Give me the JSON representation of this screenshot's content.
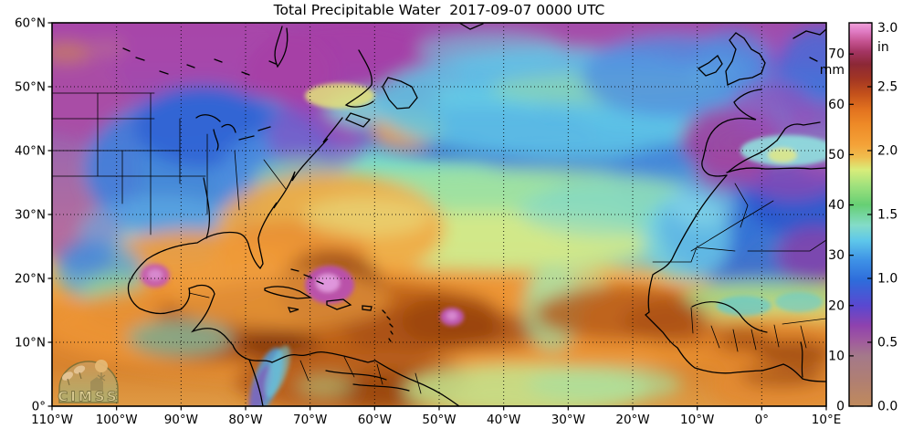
{
  "title": "Total Precipitable Water  2017-09-07 0000 UTC",
  "watermark": {
    "text": "CIMSS"
  },
  "axes": {
    "x_ticks": [
      "110°W",
      "100°W",
      "90°W",
      "80°W",
      "70°W",
      "60°W",
      "50°W",
      "40°W",
      "30°W",
      "20°W",
      "10°W",
      "0°",
      "10°E"
    ],
    "y_ticks": [
      "60°N",
      "50°N",
      "40°N",
      "30°N",
      "20°N",
      "10°N",
      "0°"
    ]
  },
  "colorbar": {
    "unit_primary": "mm",
    "unit_secondary": "in",
    "mm_ticks": [
      "70",
      "60",
      "50",
      "40",
      "30",
      "20",
      "10",
      "0"
    ],
    "in_ticks": [
      "3.0",
      "2.5",
      "2.0",
      "1.5",
      "1.0",
      "0.5",
      "0.0"
    ],
    "gradient": [
      [
        0,
        "#c08a5c"
      ],
      [
        0.066,
        "#b07f72"
      ],
      [
        0.131,
        "#a4798a"
      ],
      [
        0.171,
        "#a05a9e"
      ],
      [
        0.21,
        "#8f42ae"
      ],
      [
        0.262,
        "#5a48d0"
      ],
      [
        0.328,
        "#2e6cdb"
      ],
      [
        0.381,
        "#3e92e6"
      ],
      [
        0.433,
        "#5fc8ea"
      ],
      [
        0.472,
        "#84dcc8"
      ],
      [
        0.525,
        "#66cf74"
      ],
      [
        0.577,
        "#a2e27d"
      ],
      [
        0.617,
        "#d9ed7a"
      ],
      [
        0.65,
        "#f0bd4e"
      ],
      [
        0.682,
        "#f4a238"
      ],
      [
        0.735,
        "#ee8a27"
      ],
      [
        0.774,
        "#e2721f"
      ],
      [
        0.814,
        "#c4511b"
      ],
      [
        0.853,
        "#a33623"
      ],
      [
        0.892,
        "#8c2836"
      ],
      [
        0.925,
        "#a43563"
      ],
      [
        0.951,
        "#c45290"
      ],
      [
        0.978,
        "#e07cc4"
      ],
      [
        1,
        "#f0a2da"
      ]
    ]
  },
  "chart_data": {
    "type": "heatmap",
    "title": "Total Precipitable Water  2017-09-07 0000 UTC",
    "variable": "Total Precipitable Water",
    "timestamp": "2017-09-07 0000 UTC",
    "units": [
      "mm",
      "in"
    ],
    "colorbar_mm_ticks": [
      0,
      10,
      20,
      30,
      40,
      50,
      60,
      70
    ],
    "colorbar_in_ticks": [
      0.0,
      0.5,
      1.0,
      1.5,
      2.0,
      2.5,
      3.0
    ],
    "extent": {
      "west": "110°W",
      "east": "10°E",
      "south": "0°",
      "north": "60°N"
    },
    "grid": "10-degree dotted graticule",
    "legend_position": "right",
    "watermark": "CIMSS"
  },
  "map": {
    "base_gradient": [
      [
        0,
        "#a14caa"
      ],
      [
        0.09,
        "#9052c0"
      ],
      [
        0.17,
        "#5a77d6"
      ],
      [
        0.27,
        "#55b2e2"
      ],
      [
        0.37,
        "#7ddcc4"
      ],
      [
        0.46,
        "#a8e6a0"
      ],
      [
        0.55,
        "#d9ec8c"
      ],
      [
        0.63,
        "#f0c05c"
      ],
      [
        0.71,
        "#f0a03c"
      ],
      [
        0.8,
        "#e2862e"
      ],
      [
        0.9,
        "#d8842f"
      ],
      [
        1,
        "#df9a44"
      ]
    ],
    "blobs": [
      [
        110,
        55,
        200,
        80,
        "#a845a8",
        0.9
      ],
      [
        25,
        150,
        70,
        120,
        "#ab4da4",
        0.8
      ],
      [
        330,
        62,
        120,
        70,
        "#a63fa5",
        0.9
      ],
      [
        600,
        18,
        200,
        16,
        "#aa4da8",
        0.8
      ],
      [
        520,
        28,
        90,
        12,
        "#a04fa8",
        0.5
      ],
      [
        480,
        30,
        80,
        20,
        "#6fcfe0",
        0.6
      ],
      [
        15,
        32,
        28,
        12,
        "#cc8455",
        0.7
      ],
      [
        60,
        28,
        20,
        10,
        "#c07a8a",
        0.5
      ],
      [
        175,
        160,
        140,
        85,
        "#3f7fdc",
        0.9
      ],
      [
        165,
        113,
        75,
        45,
        "#2f62d4",
        0.85
      ],
      [
        250,
        175,
        70,
        60,
        "#4f8fe0",
        0.7
      ],
      [
        120,
        230,
        90,
        40,
        "#5fb0e8",
        0.6
      ],
      [
        290,
        125,
        55,
        40,
        "#8f49c0",
        0.6
      ],
      [
        315,
        80,
        38,
        14,
        "#e3e27a",
        0.85,
        0,
        1
      ],
      [
        420,
        95,
        120,
        26,
        "#7fe2d8",
        0.8
      ],
      [
        388,
        78,
        36,
        20,
        "#8f2f7f",
        0.8
      ],
      [
        470,
        122,
        130,
        30,
        "#2f55cc",
        0.85
      ],
      [
        585,
        140,
        130,
        28,
        "#3a66d4",
        0.75
      ],
      [
        390,
        117,
        40,
        20,
        "#f2a843",
        0.9
      ],
      [
        560,
        88,
        210,
        60,
        "#5fc8e8",
        0.85
      ],
      [
        610,
        72,
        130,
        18,
        "#9fdf9f",
        0.55
      ],
      [
        680,
        58,
        100,
        45,
        "#4f8fe0",
        0.8
      ],
      [
        840,
        60,
        45,
        55,
        "#3a6fd8",
        0.7
      ],
      [
        730,
        52,
        28,
        14,
        "#7fd8e8",
        0.5
      ],
      [
        660,
        210,
        130,
        60,
        "#4f9fe0",
        0.7
      ],
      [
        700,
        170,
        90,
        40,
        "#3f7fd8",
        0.6
      ],
      [
        490,
        215,
        270,
        55,
        "#9fe0a0",
        0.85
      ],
      [
        470,
        237,
        190,
        30,
        "#dcea84",
        0.8
      ],
      [
        620,
        205,
        110,
        30,
        "#7fd8d0",
        0.55
      ],
      [
        275,
        175,
        55,
        28,
        "#9fe0a0",
        0.6
      ],
      [
        305,
        225,
        125,
        60,
        "#f2a843",
        0.9
      ],
      [
        262,
        252,
        85,
        35,
        "#e88c30",
        0.8
      ],
      [
        345,
        212,
        70,
        22,
        "#e8e080",
        0.6
      ],
      [
        240,
        265,
        60,
        25,
        "#ef9a38",
        0.7
      ],
      [
        150,
        272,
        100,
        45,
        "#ef9a38",
        0.9
      ],
      [
        103,
        312,
        65,
        22,
        "#a84c10",
        0.7
      ],
      [
        113,
        277,
        16,
        13,
        "#c45ab4",
        0.9,
        0,
        1
      ],
      [
        113,
        276,
        8,
        6,
        "#d98ed3",
        0.9,
        0,
        1
      ],
      [
        52,
        272,
        48,
        32,
        "#55aadf",
        0.8
      ],
      [
        68,
        295,
        36,
        20,
        "#8fd88f",
        0.7
      ],
      [
        38,
        258,
        30,
        20,
        "#3f7fd8",
        0.6
      ],
      [
        380,
        332,
        390,
        62,
        "#ec9434",
        0.9
      ],
      [
        750,
        332,
        120,
        50,
        "#e89030",
        0.8
      ],
      [
        300,
        322,
        185,
        42,
        "#b35612",
        0.8
      ],
      [
        180,
        347,
        95,
        26,
        "#9a4410",
        0.75
      ],
      [
        405,
        337,
        85,
        26,
        "#a84c12",
        0.8
      ],
      [
        480,
        337,
        60,
        20,
        "#9a4410",
        0.7
      ],
      [
        250,
        352,
        42,
        16,
        "#7f3408",
        0.7
      ],
      [
        305,
        292,
        58,
        42,
        "#8a3a0c",
        0.8
      ],
      [
        304,
        287,
        27,
        21,
        "#b84fb0",
        0.95,
        0,
        1
      ],
      [
        302,
        285,
        13,
        10,
        "#e19ade",
        0.95,
        0,
        1
      ],
      [
        438,
        326,
        55,
        30,
        "#9a4410",
        0.75
      ],
      [
        438,
        322,
        13,
        10,
        "#c05ab8",
        0.95,
        0,
        1
      ],
      [
        438,
        321,
        6,
        5,
        "#d98ed3",
        0.9,
        0,
        1
      ],
      [
        548,
        312,
        32,
        48,
        "#9ed8a0",
        0.75
      ],
      [
        565,
        288,
        42,
        24,
        "#b8e8a8",
        0.55
      ],
      [
        625,
        318,
        95,
        30,
        "#b3581a",
        0.8
      ],
      [
        695,
        328,
        70,
        25,
        "#a84c12",
        0.7
      ],
      [
        140,
        345,
        58,
        20,
        "#7fc8b0",
        0.7
      ],
      [
        250,
        302,
        120,
        35,
        "#f0a040",
        0.7
      ],
      [
        235,
        392,
        14,
        38,
        "#4f9fe0",
        0.85,
        20,
        1
      ],
      [
        228,
        402,
        9,
        28,
        "#8a4fb8",
        0.6,
        20,
        1
      ],
      [
        247,
        382,
        10,
        30,
        "#6fd0e0",
        0.6,
        20,
        1
      ],
      [
        330,
        392,
        130,
        36,
        "#b3581a",
        0.85
      ],
      [
        375,
        402,
        65,
        22,
        "#93400e",
        0.75
      ],
      [
        300,
        398,
        32,
        12,
        "#a8d890",
        0.5
      ],
      [
        520,
        402,
        135,
        28,
        "#c4e68f",
        0.85
      ],
      [
        605,
        396,
        85,
        20,
        "#a8dfa0",
        0.7
      ],
      [
        795,
        400,
        75,
        28,
        "#e4892f",
        0.8
      ],
      [
        800,
        386,
        45,
        12,
        "#8a3a0c",
        0.65
      ],
      [
        780,
        225,
        115,
        68,
        "#2f6ad8",
        0.9
      ],
      [
        822,
        193,
        60,
        42,
        "#2a52cc",
        0.8
      ],
      [
        836,
        255,
        42,
        32,
        "#8a3fa8",
        0.8
      ],
      [
        812,
        168,
        52,
        26,
        "#9a46b0",
        0.7
      ],
      [
        845,
        128,
        42,
        42,
        "#a04fb0",
        0.7
      ],
      [
        695,
        235,
        48,
        48,
        "#6fcfe8",
        0.75
      ],
      [
        712,
        198,
        36,
        26,
        "#8fdfe8",
        0.55
      ],
      [
        780,
        300,
        88,
        18,
        "#9fdf8f",
        0.85
      ],
      [
        758,
        310,
        30,
        11,
        "#5fc8d0",
        0.7,
        0,
        1
      ],
      [
        818,
        306,
        26,
        11,
        "#66ccd4",
        0.6,
        0,
        1
      ],
      [
        790,
        320,
        82,
        12,
        "#e3e27a",
        0.7
      ],
      [
        790,
        352,
        82,
        30,
        "#e0852c",
        0.85
      ],
      [
        812,
        362,
        42,
        15,
        "#93400e",
        0.75
      ],
      [
        758,
        347,
        30,
        13,
        "#9a4410",
        0.65
      ],
      [
        745,
        128,
        56,
        36,
        "#a03f9f",
        0.9
      ],
      [
        788,
        95,
        46,
        30,
        "#984fb8",
        0.7
      ],
      [
        740,
        165,
        36,
        20,
        "#a8459f",
        0.7
      ],
      [
        806,
        140,
        52,
        17,
        "#8fe8e0",
        0.85,
        0,
        1
      ],
      [
        800,
        145,
        16,
        8,
        "#e8e87f",
        0.8,
        0,
        1
      ],
      [
        745,
        40,
        42,
        32,
        "#4f8fe0",
        0.7
      ]
    ],
    "coastlines": [
      "M252,4 C247,22 240,32 247,48 C254,38 260,26 257,6",
      "M336,30 C344,44 352,56 350,68 C342,78 330,84 322,90 C330,94 344,92 352,86",
      "M368,60 L382,64 L394,70 L400,82 L391,93 L378,94 L369,84 L362,70 Z",
      "M327,99 L348,106 L341,114 L322,106 Z",
      "M318,104 C306,120 300,126 297,131 L302,127 C288,143 272,158 263,173 L266,163 C258,184 247,196 243,203 L246,197 C234,214 228,226 226,236 C226,244 230,256 231,264 L228,269 C221,262 217,250 215,242 C212,234 208,231 202,230 C188,228 174,232 164,238 L159,241 C139,243 119,249 104,259 C94,268 87,278 84,286 C82,296 86,306 96,313 C107,318 119,320 129,317 L141,314 C149,307 152,299 150,291 L159,288 C169,286 176,290 178,297 L173,310 C168,322 160,331 154,338 C163,335 172,333 181,337 C189,341 193,348 198,353 C201,361 207,366 216,369 C226,372 233,368 241,372 C251,368 259,362 269,364 C281,366 287,359 299,361 C315,363 331,368 346,372 L354,370 C367,378 381,386 396,392 C411,398 426,406 436,413 L446,420",
      "M216,369 C221,382 226,396 229,410 L231,420",
      "M233,291 C246,287 259,289 271,294 L283,301 L269,302 C255,300 241,297 233,293 Z",
      "M301,305 L319,303 L327,309 L312,314 L301,309 Z",
      "M259,312 L270,314 L261,317 Z",
      "M340,310 L350,311 L349,315 L340,314 Z",
      "M362,315 l3,3 M367,322 l3,3 M370,330 l3,3 M371,338 l2,3 M369,346 l2,3",
      "M262,270 l8,2 M276,276 l8,3 M290,283 l7,3",
      "M158,104 C166,98 177,101 184,108 M186,114 C193,109 199,112 201,120 M177,117 C179,128 184,132 181,139 M205,128 L221,124 M226,118 L239,114",
      "M446,0 L458,7 L472,1",
      "M739,167 C726,182 714,197 705,212 C695,228 686,244 679,259 C673,269 663,272 658,276 C654,290 652,304 654,317 L650,320 C656,326 663,333 669,339 C675,347 679,352 685,356 C691,366 697,373 704,378 C719,383 735,385 749,383 C762,382 771,381 778,381 C790,378 798,375 801,374 C811,378 817,385 822,390 C831,393 841,393 848,393",
      "M739,164 C753,159 767,158 781,160 C801,160 816,158 831,160 L848,159",
      "M713,149 C710,156 713,162 719,166 C726,169 733,168 739,167 M713,149 L717,132 C721,119 729,111 740,107 C753,103 763,105 771,106 C761,102 751,95 747,87 C757,77 767,74 777,73 M741,163 C755,151 769,146 776,142 C785,137 791,131 794,129 C798,123 801,119 803,116 C809,111 816,110 823,112 L841,109",
      "M740,68 L753,62 L767,60 L777,55 L781,44 L775,34 L766,29 L758,17 L749,11 L742,19 L749,29 L745,42 L738,53 Z",
      "M708,50 L719,44 L729,36 L734,45 L727,54 L716,58 Z",
      "M812,17 L826,9 L841,13 L848,7 M830,38 l8,4",
      "M92,38 l9,3 M118,53 l9,3 M148,46 l8,3 M178,40 l8,3 M208,54 l8,3 M78,28 l7,3 M238,42 l7,3"
    ],
    "borders": [
      "M0,77 L112,77",
      "M0,105 L112,105",
      "M0,140 L140,140",
      "M0,168 L168,168",
      "M50,77 L50,168",
      "M108,77 L108,232",
      "M77,140 L77,198",
      "M140,105 L140,176",
      "M170,122 L170,210",
      "M200,140 L205,205",
      "M232,150 L256,182",
      "M150,296 L172,301",
      "M658,262 L700,262 L706,246 L748,250",
      "M700,250 L790,195",
      "M700,312 L702,340",
      "M722,332 L731,356 M746,336 L751,360 M766,336 L771,358 M791,331 L796,355",
      "M800,330 L848,324 M820,332 L826,356",
      "M748,176 L762,200 L754,224",
      "M762,250 L830,250 L848,238",
      "M272,370 L281,392 M320,366 L331,388 M356,374 L362,396 M398,384 L404,406"
    ],
    "rivers": [
      "M166,170 C171,196 176,216 169,236",
      "M701,311 C721,301 741,306 753,319 C761,331 771,337 783,339",
      "M300,381 C321,386 346,383 366,391 M330,396 C351,399 371,397 391,403",
      "M820,350 C824,362 820,374 822,388"
    ]
  }
}
